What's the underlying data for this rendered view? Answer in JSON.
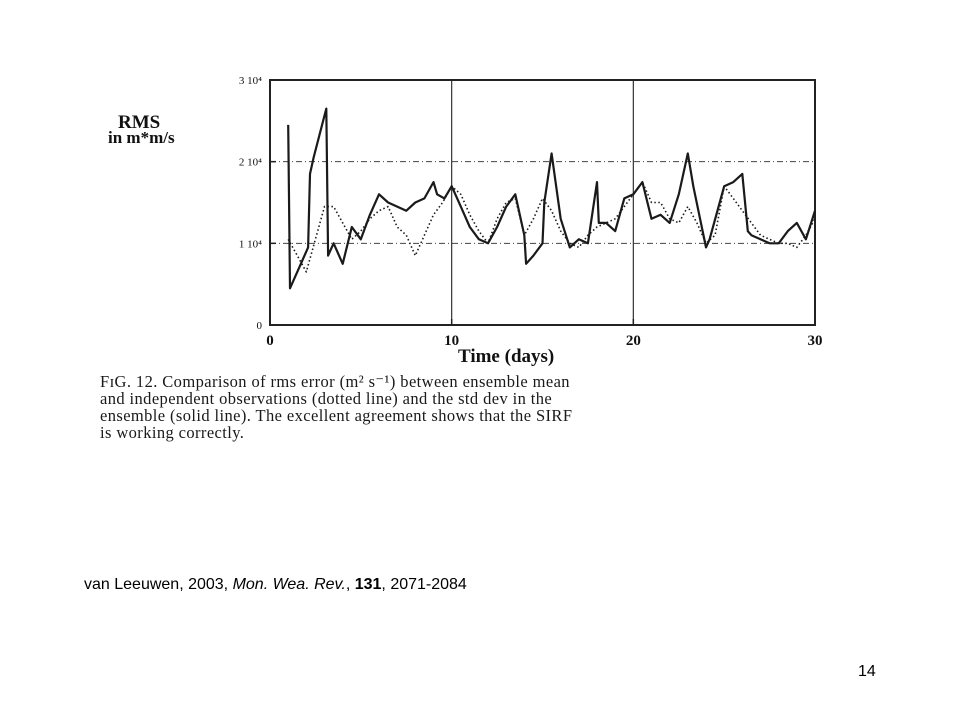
{
  "chart_data": {
    "type": "line",
    "ylabel_line1": "RMS",
    "ylabel_line2": "in m*m/s",
    "xlabel": "Time (days)",
    "xlim": [
      0,
      30
    ],
    "ylim": [
      0,
      30000
    ],
    "x_ticks": [
      "0",
      "10",
      "20",
      "30"
    ],
    "x_tick_values": [
      0,
      10,
      20,
      30
    ],
    "y_ticks": [
      "0",
      "1 10⁴",
      "2 10⁴",
      "3 10⁴"
    ],
    "y_tick_values": [
      0,
      10000,
      20000,
      30000
    ],
    "grid": "dash-dot at x=10,20 and y=10000,20000",
    "series": [
      {
        "style": "solid",
        "x": [
          1,
          1.1,
          1.6,
          2.1,
          2.2,
          2.4,
          3.1,
          3.2,
          3.5,
          4,
          4.5,
          5,
          5.5,
          6,
          6.5,
          7,
          7.5,
          8,
          8.5,
          9,
          9.2,
          9.6,
          10,
          10.5,
          11,
          11.5,
          12,
          12.5,
          13,
          13.5,
          14,
          14.1,
          14.5,
          15,
          15.1,
          15.5,
          16,
          16.5,
          17,
          17.5,
          18,
          18.1,
          18.5,
          19,
          19.5,
          20,
          20.5,
          21,
          21.5,
          22,
          22.5,
          23,
          23.3,
          24,
          24.2,
          25,
          25.5,
          26,
          26.3,
          26.5,
          27,
          27.5,
          28,
          28.5,
          29,
          29.5,
          30
        ],
        "y": [
          24500,
          4500,
          7000,
          9500,
          18500,
          20500,
          26500,
          8500,
          10000,
          7500,
          12000,
          10500,
          13500,
          16000,
          15000,
          14500,
          14000,
          15000,
          15500,
          17500,
          16000,
          15500,
          17000,
          14500,
          12000,
          10500,
          10000,
          12000,
          14500,
          16000,
          11000,
          7500,
          8500,
          10000,
          15000,
          21000,
          13000,
          9500,
          10500,
          10000,
          17500,
          12500,
          12500,
          11500,
          15500,
          16000,
          17500,
          13000,
          13500,
          12500,
          16000,
          21000,
          17000,
          9500,
          10500,
          17000,
          17500,
          18500,
          11500,
          11000,
          10500,
          10000,
          10000,
          11500,
          12500,
          10500,
          14000
        ]
      },
      {
        "style": "dotted",
        "x": [
          1,
          1.5,
          2,
          2.5,
          3,
          3.5,
          4,
          4.5,
          5,
          5.5,
          6,
          6.5,
          7,
          7.5,
          8,
          8.5,
          9,
          9.5,
          10,
          10.5,
          11,
          11.5,
          12,
          12.5,
          13,
          13.5,
          14,
          14.5,
          15,
          15.5,
          16,
          16.5,
          17,
          17.5,
          18,
          18.5,
          19,
          19.5,
          20,
          20.5,
          21,
          21.5,
          22,
          22.5,
          23,
          23.5,
          24,
          24.5,
          25,
          25.5,
          26,
          26.5,
          27,
          27.5,
          28,
          28.5,
          29,
          29.5,
          30
        ],
        "y": [
          10500,
          8500,
          6500,
          10500,
          14500,
          14500,
          12500,
          10500,
          11500,
          13000,
          14000,
          14500,
          12000,
          11000,
          8500,
          11000,
          13500,
          15000,
          17000,
          16000,
          13500,
          11500,
          10000,
          13000,
          15000,
          15500,
          11000,
          13000,
          15500,
          14000,
          11500,
          10000,
          9500,
          11000,
          12000,
          12500,
          13000,
          14500,
          16000,
          17500,
          15000,
          15000,
          13000,
          12500,
          14500,
          12500,
          10000,
          11000,
          17000,
          15500,
          14000,
          12500,
          11000,
          10500,
          10000,
          10000,
          9500,
          11000,
          13000
        ]
      }
    ]
  },
  "caption": {
    "line1": "FɪG. 12. Comparison of rms error (m² s⁻¹) between ensemble mean",
    "line2": "and independent observations (dotted line) and the std dev in the",
    "line3": "ensemble (solid line). The excellent agreement shows that the SIRF",
    "line4": "is working correctly."
  },
  "citation": {
    "authors": "van Leeuwen, 2003,",
    "journal": "Mon. Wea. Rev.",
    "sep1": ",",
    "volume": "131",
    "pages": ", 2071-2084"
  },
  "page_number": "14"
}
